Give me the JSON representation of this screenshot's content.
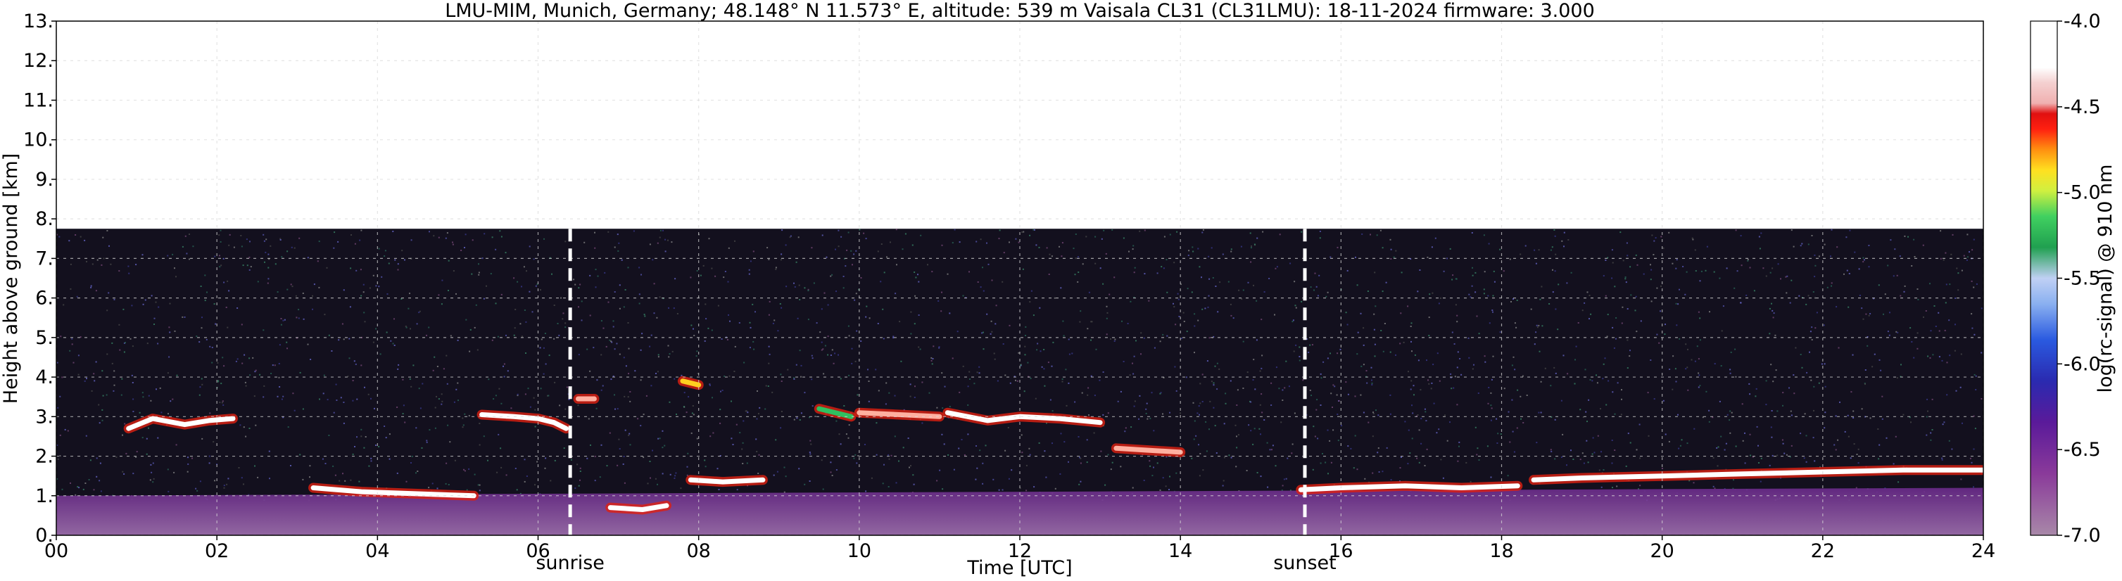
{
  "chart_data": {
    "type": "heatmap",
    "title": "LMU-MIM, Munich, Germany; 48.148° N 11.573° E, altitude: 539 m    Vaisala CL31 (CL31LMU): 18-11-2024    firmware: 3.000",
    "xlabel": "Time [UTC]",
    "ylabel": "Height above ground [km]",
    "xlim": [
      0,
      24
    ],
    "ylim": [
      0,
      13
    ],
    "x_ticks": [
      "00",
      "02",
      "04",
      "06",
      "08",
      "10",
      "12",
      "14",
      "16",
      "18",
      "20",
      "22",
      "24"
    ],
    "y_ticks": [
      "0.",
      "1.",
      "2.",
      "3.",
      "4.",
      "5.",
      "6.",
      "7.",
      "8.",
      "9.",
      "10.",
      "11.",
      "12.",
      "13."
    ],
    "grid": true,
    "colorbar": {
      "label": "log(rc-signal) @ 910 nm",
      "range": [
        -7.0,
        -4.0
      ],
      "ticks": [
        "-4.0",
        "-4.5",
        "-5.0",
        "-5.5",
        "-6.0",
        "-6.5",
        "-7.0"
      ]
    },
    "signal_top_km": 7.75,
    "annotations": [
      {
        "label": "sunrise",
        "x": 6.4
      },
      {
        "label": "sunset",
        "x": 15.55
      }
    ],
    "cloud_layers": [
      {
        "x": [
          0.9,
          1.2,
          1.6,
          1.9,
          2.2
        ],
        "y": [
          2.7,
          2.95,
          2.8,
          2.9,
          2.95
        ],
        "intensity": -4.4
      },
      {
        "x": [
          5.3,
          5.7,
          6.0,
          6.2,
          6.35
        ],
        "y": [
          3.05,
          3.0,
          2.95,
          2.85,
          2.7
        ],
        "intensity": -4.4
      },
      {
        "x": [
          6.5,
          6.7
        ],
        "y": [
          3.45,
          3.45
        ],
        "intensity": -4.6
      },
      {
        "x": [
          7.8,
          8.0
        ],
        "y": [
          3.9,
          3.8
        ],
        "intensity": -4.8
      },
      {
        "x": [
          9.5,
          9.9
        ],
        "y": [
          3.2,
          3.0
        ],
        "intensity": -5.1
      },
      {
        "x": [
          10.0,
          10.5,
          11.0
        ],
        "y": [
          3.1,
          3.05,
          3.0
        ],
        "intensity": -4.5
      },
      {
        "x": [
          11.1,
          11.6,
          12.0,
          12.5,
          13.0
        ],
        "y": [
          3.1,
          2.9,
          3.0,
          2.95,
          2.85
        ],
        "intensity": -4.4
      },
      {
        "x": [
          13.2,
          13.6,
          14.0
        ],
        "y": [
          2.2,
          2.15,
          2.1
        ],
        "intensity": -4.5
      },
      {
        "x": [
          3.2,
          3.8,
          4.5,
          5.2
        ],
        "y": [
          1.2,
          1.1,
          1.05,
          1.0
        ],
        "intensity": -4.3
      },
      {
        "x": [
          6.9,
          7.3,
          7.6
        ],
        "y": [
          0.7,
          0.65,
          0.75
        ],
        "intensity": -4.3
      },
      {
        "x": [
          7.9,
          8.3,
          8.8
        ],
        "y": [
          1.4,
          1.35,
          1.4
        ],
        "intensity": -4.3
      },
      {
        "x": [
          15.5,
          16.0,
          16.8,
          17.5,
          18.2
        ],
        "y": [
          1.15,
          1.2,
          1.25,
          1.2,
          1.25
        ],
        "intensity": -4.4
      },
      {
        "x": [
          18.4,
          19.0,
          20.0,
          21.0,
          22.0,
          23.0,
          24.0
        ],
        "y": [
          1.4,
          1.45,
          1.5,
          1.55,
          1.6,
          1.65,
          1.65
        ],
        "intensity": -4.3
      }
    ],
    "aerosol_layer": {
      "top_km_start": 1.0,
      "top_km_end": 1.2,
      "intensity": -6.5
    }
  }
}
